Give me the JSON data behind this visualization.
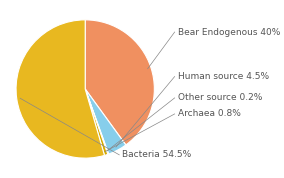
{
  "labels": [
    "Bear Endogenous 40%",
    "Human source 4.5%",
    "Other source 0.2%",
    "Archaea 0.8%",
    "Bacteria 54.5%"
  ],
  "values": [
    40.0,
    4.5,
    0.2,
    0.8,
    54.5
  ],
  "slice_colors": [
    "#F09060",
    "#87CEEB",
    "#B8B8B8",
    "#D4AA00",
    "#E8B820"
  ],
  "startangle": 90,
  "counterclock": false,
  "background_color": "#ffffff",
  "text_color": "#555555",
  "font_size": 6.5,
  "edge_color": "#ffffff",
  "edge_lw": 0.8
}
